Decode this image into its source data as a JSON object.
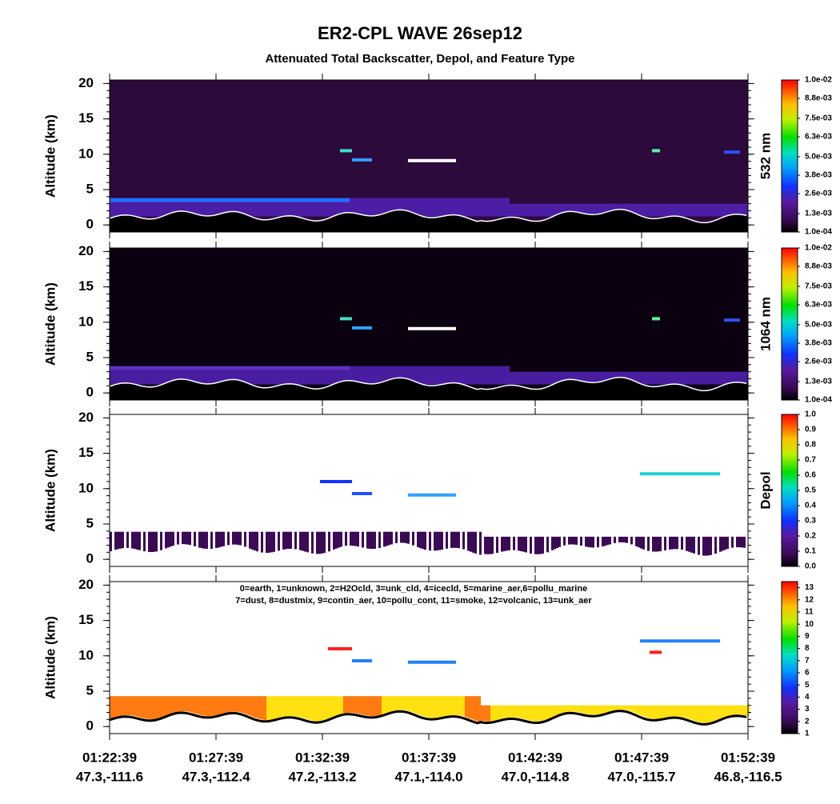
{
  "title": "ER2-CPL WAVE 26sep12",
  "subtitle": "Attenuated Total Backscatter, Depol, and Feature Type",
  "x_axis": {
    "times": [
      "01:22:39",
      "01:27:39",
      "01:32:39",
      "01:37:39",
      "01:42:39",
      "01:47:39",
      "01:52:39"
    ],
    "locations": [
      "47.3,-111.6",
      "47.3,-112.4",
      "47.2,-113.2",
      "47.1,-114.0",
      "47.0,-114.8",
      "47.0,-115.7",
      "46.8,-116.5"
    ]
  },
  "chart_data": [
    {
      "type": "heatmap",
      "ylabel": "Altitude (km)",
      "ylim": [
        -1,
        20.5
      ],
      "yticks": [
        0,
        5,
        10,
        15,
        20
      ],
      "colorbar_label": "532 nm",
      "clim": [
        0.0001,
        0.01
      ],
      "colorbar_ticks": [
        {
          "value": 0.0001,
          "label": "1.0e-04"
        },
        {
          "value": 0.0013,
          "label": "1.3e-03"
        },
        {
          "value": 0.0026,
          "label": "2.6e-03"
        },
        {
          "value": 0.0038,
          "label": "3.8e-03"
        },
        {
          "value": 0.005,
          "label": "5.0e-03"
        },
        {
          "value": 0.0063,
          "label": "6.3e-03"
        },
        {
          "value": 0.0075,
          "label": "7.5e-03"
        },
        {
          "value": 0.0088,
          "label": "8.8e-03"
        },
        {
          "value": 0.01,
          "label": "1.0e-02"
        }
      ]
    },
    {
      "type": "heatmap",
      "ylabel": "Altitude (km)",
      "ylim": [
        -1,
        20.5
      ],
      "yticks": [
        0,
        5,
        10,
        15,
        20
      ],
      "colorbar_label": "1064 nm",
      "clim": [
        0.0001,
        0.01
      ],
      "colorbar_ticks": [
        {
          "value": 0.0001,
          "label": "1.0e-04"
        },
        {
          "value": 0.0013,
          "label": "1.3e-03"
        },
        {
          "value": 0.0026,
          "label": "2.6e-03"
        },
        {
          "value": 0.0038,
          "label": "3.8e-03"
        },
        {
          "value": 0.005,
          "label": "5.0e-03"
        },
        {
          "value": 0.0063,
          "label": "6.3e-03"
        },
        {
          "value": 0.0075,
          "label": "7.5e-03"
        },
        {
          "value": 0.0088,
          "label": "8.8e-03"
        },
        {
          "value": 0.01,
          "label": "1.0e-02"
        }
      ]
    },
    {
      "type": "heatmap",
      "ylabel": "Altitude (km)",
      "ylim": [
        -1,
        20.5
      ],
      "yticks": [
        0,
        5,
        10,
        15,
        20
      ],
      "colorbar_label": "Depol",
      "clim": [
        0,
        1
      ],
      "colorbar_ticks": [
        {
          "value": 0,
          "label": "0.0"
        },
        {
          "value": 0.1,
          "label": "0.1"
        },
        {
          "value": 0.2,
          "label": "0.2"
        },
        {
          "value": 0.3,
          "label": "0.3"
        },
        {
          "value": 0.4,
          "label": "0.4"
        },
        {
          "value": 0.5,
          "label": "0.5"
        },
        {
          "value": 0.6,
          "label": "0.6"
        },
        {
          "value": 0.7,
          "label": "0.7"
        },
        {
          "value": 0.8,
          "label": "0.8"
        },
        {
          "value": 0.9,
          "label": "0.9"
        },
        {
          "value": 1,
          "label": "1.0"
        }
      ]
    },
    {
      "type": "heatmap",
      "ylabel": "Altitude (km)",
      "ylim": [
        -1,
        20.5
      ],
      "yticks": [
        0,
        5,
        10,
        15,
        20
      ],
      "legend_lines": [
        "0=earth, 1=unknown, 2=H2Ocld, 3=unk_cld, 4=icecld, 5=marine_aer,6=pollu_marine",
        "7=dust, 8=dustmix, 9=contin_aer, 10=pollu_cont, 11=smoke, 12=volcanic, 13=unk_aer"
      ],
      "clim": [
        1,
        13.5
      ],
      "colorbar_ticks": [
        1,
        2,
        3,
        4,
        5,
        6,
        7,
        8,
        9,
        10,
        11,
        12,
        13
      ]
    }
  ]
}
